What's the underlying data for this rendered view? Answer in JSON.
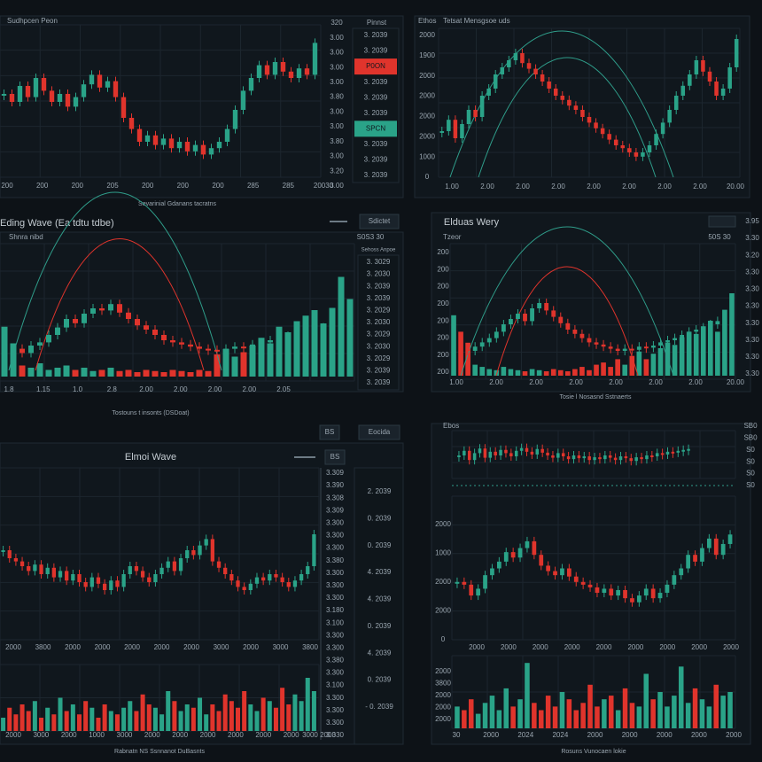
{
  "panels": [
    {
      "subtitle": "Sudhpcen Peon",
      "side_title": "Pinnst",
      "caption": "Sevarinial Gdanans tacratns",
      "ylabels": [
        "320",
        "3.00",
        "3.00",
        "3.00",
        "3.00",
        "3.80",
        "3.00",
        "3.00",
        "3.80",
        "3.00",
        "3.20",
        "3.00"
      ],
      "xlabels": [
        "200",
        "200",
        "200",
        "205",
        "200",
        "200",
        "200",
        "285",
        "285",
        "20030"
      ],
      "side": [
        "3. 2039",
        "3. 2039",
        {
          "text": "P0ON",
          "color": "#e0342c"
        },
        "3. 2039",
        "3. 2039",
        "3. 2039",
        {
          "text": "SPCN",
          "color": "#2aa388"
        },
        "3. 2039",
        "3. 2039",
        "3. 2039"
      ],
      "ylim": [
        10,
        100
      ],
      "closes": [
        60,
        55,
        65,
        58,
        70,
        62,
        55,
        60,
        52,
        58,
        66,
        72,
        64,
        68,
        58,
        45,
        38,
        30,
        34,
        28,
        32,
        26,
        30,
        24,
        28,
        22,
        26,
        30,
        38,
        50,
        62,
        70,
        78,
        72,
        80,
        74,
        70,
        76,
        72,
        92
      ]
    },
    {
      "title": "Ethos",
      "subtitle": "Tetsat Mensgsoe uds",
      "ylabels": [
        "2000",
        "1900",
        "2000",
        "2000",
        "2000",
        "2000",
        "1000",
        "0"
      ],
      "xlabels": [
        "1.00",
        "2.00",
        "2.00",
        "2.00",
        "2.00",
        "2.00",
        "2.00",
        "2.00",
        "20.00"
      ],
      "ylim": [
        0,
        100
      ],
      "closes": [
        30,
        38,
        25,
        35,
        45,
        40,
        55,
        60,
        70,
        75,
        80,
        85,
        78,
        74,
        70,
        65,
        60,
        55,
        52,
        48,
        45,
        40,
        36,
        32,
        28,
        24,
        20,
        18,
        15,
        12,
        15,
        20,
        28,
        36,
        45,
        55,
        62,
        70,
        80,
        72,
        65,
        55,
        60,
        75,
        95
      ]
    },
    {
      "title": "Eding Wave (Ea tdtu tdbe)",
      "button": "Sdictet",
      "subtitle": "Shnra nibd",
      "corner": "S0S3 30",
      "side_title": "Sehoss Anpoe",
      "caption": "Tostouns t insonts (DSDoat)",
      "side": [
        "3. 3029",
        "3. 2030",
        "3. 2039",
        "3. 2039",
        "3. 2029",
        "3. 2030",
        "3. 2029",
        "3. 2030",
        "3. 2029",
        "3. 2039",
        "3. 2039"
      ],
      "xlabels": [
        "1.8",
        "1.15",
        "1.0",
        "2.8",
        "2.00",
        "2.00",
        "2.00",
        "2.00",
        "2.05"
      ],
      "ylim": [
        0,
        100
      ],
      "vlim": [
        0,
        100
      ],
      "closes": [
        20,
        22,
        18,
        25,
        28,
        35,
        42,
        50,
        46,
        55,
        60,
        58,
        64,
        56,
        50,
        44,
        40,
        35,
        30,
        28,
        26,
        24,
        22,
        21,
        20,
        22,
        24,
        23,
        26,
        28,
        30,
        32,
        34,
        36,
        38,
        40,
        42,
        45,
        48,
        50
      ],
      "volumes": [
        45,
        30,
        10,
        8,
        12,
        6,
        8,
        10,
        6,
        8,
        5,
        6,
        8,
        5,
        6,
        4,
        6,
        5,
        4,
        6,
        5,
        4,
        6,
        5,
        20,
        25,
        18,
        22,
        28,
        35,
        30,
        45,
        40,
        50,
        55,
        60,
        48,
        62,
        90,
        70
      ]
    },
    {
      "title": "Elduas Wery",
      "subtitle": "Tzeor",
      "corner": "50S 30",
      "caption": "Tosie l Nosasnd Sstnaerts",
      "ylabels": [
        "200",
        "200",
        "200",
        "200",
        "200",
        "200",
        "200",
        "200"
      ],
      "ylabels2": [
        "3.95",
        "3.30",
        "3.20",
        "3.30",
        "3.30",
        "3.30",
        "3.30",
        "3.30",
        "3.30",
        "3.30"
      ],
      "xlabels": [
        "1.00",
        "2.00",
        "2.00",
        "2.00",
        "2.00",
        "2.00",
        "2.00",
        "20.00"
      ],
      "ylim": [
        0,
        100
      ],
      "vlim": [
        0,
        100
      ],
      "closes": [
        25,
        22,
        20,
        24,
        28,
        32,
        38,
        45,
        50,
        55,
        48,
        60,
        65,
        58,
        52,
        46,
        40,
        36,
        32,
        28,
        26,
        24,
        22,
        20,
        22,
        21,
        24,
        23,
        25,
        28,
        30,
        32,
        35,
        38,
        40,
        42,
        45,
        48,
        52,
        60
      ],
      "volumes": [
        55,
        40,
        30,
        10,
        8,
        6,
        5,
        8,
        6,
        5,
        4,
        6,
        5,
        4,
        6,
        5,
        4,
        6,
        8,
        5,
        10,
        12,
        8,
        15,
        10,
        18,
        22,
        15,
        20,
        25,
        30,
        28,
        35,
        40,
        38,
        45,
        50,
        40,
        60,
        75
      ]
    },
    {
      "title": "Elmoi Wave",
      "button": "Eocida",
      "button2": "BS",
      "caption": "Rabnatn NS Ssnnanot DuBasnts",
      "ylabels": [
        "3.309",
        "3.390",
        "3.308",
        "3.309",
        "3.300",
        "3.300",
        "3.300",
        "3.380",
        "3.300",
        "3.300",
        "3.300",
        "3.180",
        "3.100",
        "3.300",
        "3.300",
        "3.380",
        "3.300",
        "3.100",
        "3.300",
        "3.300",
        "3.300",
        "3.330"
      ],
      "side": [
        "2. 2039",
        "0. 2039",
        "0. 2039",
        "4. 2039",
        "4. 2039",
        "0. 2039",
        "4. 2039",
        "0. 2039",
        "- 0. 2039"
      ],
      "xlabels": [
        "2000",
        "3800",
        "2000",
        "2000",
        "2000",
        "2000",
        "2000",
        "3000",
        "2000",
        "3000",
        "3800"
      ],
      "xlabels2": [
        "2000",
        "3000",
        "2000",
        "1000",
        "3000",
        "2000",
        "2000",
        "2000",
        "2000",
        "2000",
        "2000",
        "3000 2000"
      ],
      "ylim": [
        0,
        100
      ],
      "vlim": [
        0,
        100
      ],
      "closes": [
        55,
        50,
        48,
        45,
        42,
        46,
        40,
        44,
        38,
        42,
        36,
        40,
        35,
        32,
        38,
        34,
        30,
        36,
        32,
        40,
        45,
        42,
        38,
        35,
        40,
        44,
        48,
        42,
        50,
        55,
        52,
        58,
        62,
        48,
        44,
        40,
        36,
        32,
        30,
        34,
        38,
        36,
        40,
        38,
        35,
        32,
        36,
        40,
        45,
        65
      ],
      "volumes": [
        20,
        35,
        25,
        40,
        30,
        45,
        20,
        35,
        25,
        50,
        30,
        40,
        25,
        45,
        35,
        20,
        40,
        30,
        25,
        35,
        45,
        30,
        55,
        40,
        35,
        25,
        60,
        45,
        30,
        40,
        35,
        50,
        25,
        40,
        30,
        55,
        45,
        35,
        60,
        40,
        30,
        50,
        45,
        35,
        65,
        40,
        55,
        45,
        80,
        60
      ]
    },
    {
      "title": "Ebos",
      "caption": "Rosuns Vunocaen lokie",
      "ylabels": [
        "SB0",
        "SB0",
        "S0",
        "S0",
        "S0",
        "S0"
      ],
      "ylabels2": [
        "2000",
        "1000",
        "2000",
        "2000",
        "0"
      ],
      "ylabels3": [
        "2000",
        "3800",
        "2000",
        "2000",
        "2000"
      ],
      "xlabels": [
        "2000",
        "2000",
        "2000",
        "2000",
        "2000",
        "2000",
        "2000",
        "2000",
        "2000"
      ],
      "xlabels2": [
        "30",
        "2000",
        "2024",
        "2024",
        "2000",
        "2000",
        "2000",
        "2000",
        "2000"
      ],
      "mini_ylim": [
        0,
        100
      ],
      "ylim": [
        0,
        100
      ],
      "vlim": [
        0,
        100
      ],
      "mini_closes": [
        50,
        60,
        40,
        55,
        65,
        45,
        58,
        50,
        62,
        55,
        48,
        60,
        66,
        58,
        52,
        64,
        56,
        50,
        45,
        55,
        48,
        42,
        50,
        44,
        48,
        40,
        46,
        42,
        50,
        45,
        40,
        48,
        44,
        38,
        46,
        42,
        50,
        48,
        55,
        52,
        58,
        56,
        60,
        62,
        64
      ],
      "closes": [
        40,
        38,
        30,
        35,
        45,
        50,
        55,
        62,
        58,
        65,
        70,
        60,
        52,
        48,
        45,
        50,
        44,
        40,
        38,
        36,
        32,
        35,
        30,
        34,
        28,
        25,
        30,
        35,
        28,
        32,
        38,
        45,
        50,
        60,
        55,
        65,
        72,
        60,
        68,
        75
      ],
      "volumes": [
        30,
        25,
        40,
        20,
        35,
        45,
        25,
        55,
        30,
        40,
        90,
        35,
        25,
        45,
        30,
        50,
        40,
        25,
        35,
        60,
        30,
        40,
        45,
        25,
        55,
        35,
        30,
        75,
        40,
        50,
        30,
        45,
        85,
        35,
        55,
        40,
        30,
        60,
        45,
        50
      ]
    }
  ]
}
